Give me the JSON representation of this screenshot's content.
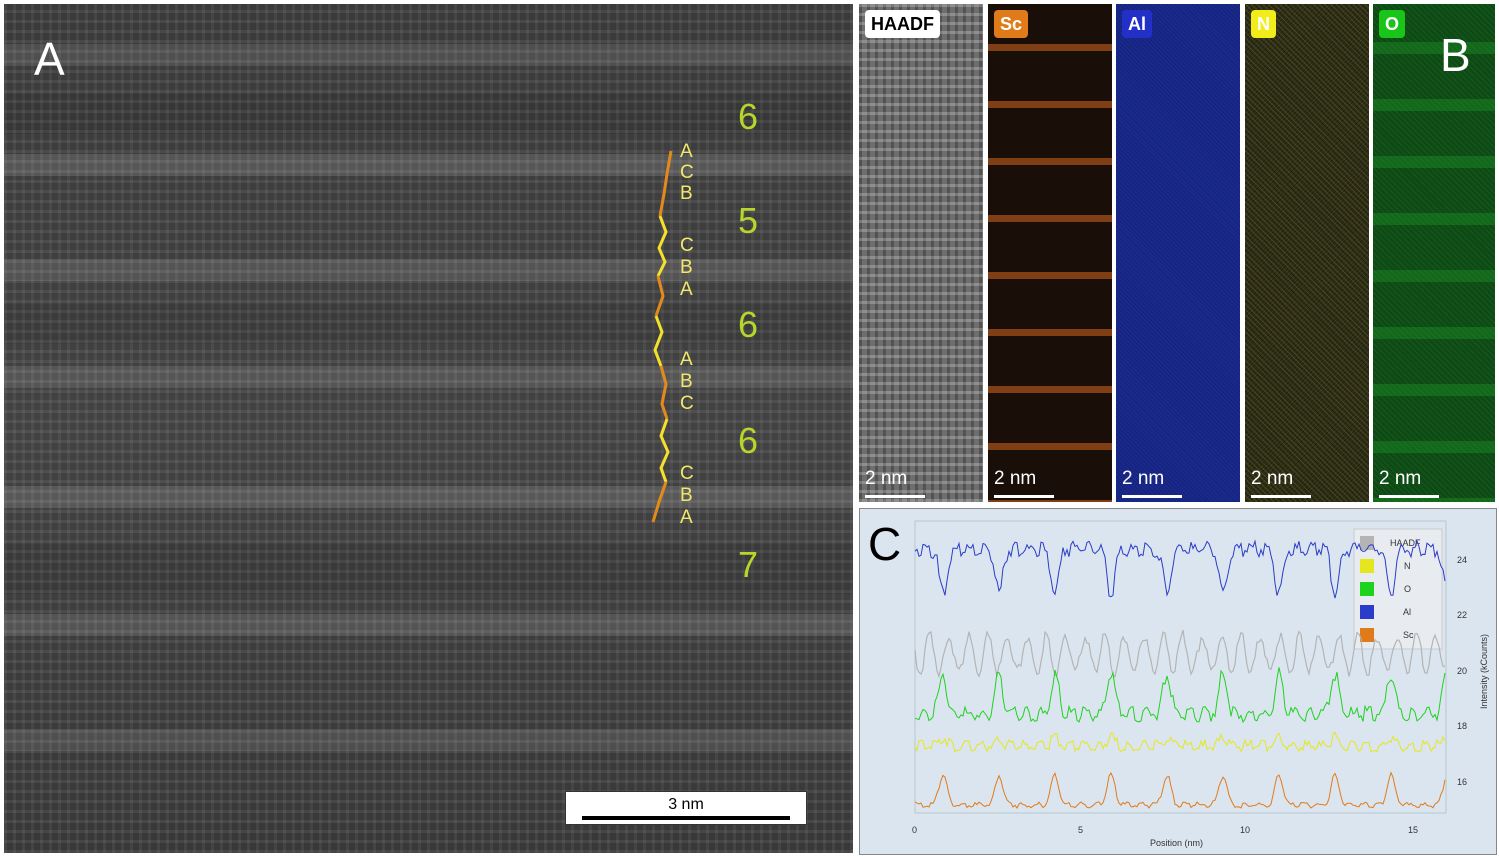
{
  "panel_a": {
    "letter": "A",
    "layer_numbers": [
      "6",
      "5",
      "6",
      "6",
      "7"
    ],
    "stacking_letters": [
      "A",
      "C",
      "B",
      "C",
      "B",
      "A",
      "A",
      "B",
      "C",
      "C",
      "B",
      "A"
    ],
    "scalebar_label": "3 nm",
    "colors": {
      "layer_numbers": "#b5d62a",
      "stacking_letters": "#f2e96a",
      "zigzag_orange": "#e48a1c",
      "zigzag_yellow": "#f3e12a"
    }
  },
  "panel_b": {
    "letter": "B",
    "maps": [
      {
        "label": "HAADF",
        "scalebar": "2 nm",
        "tag_bg": "#ffffff",
        "tag_fg": "#000000"
      },
      {
        "label": "Sc",
        "scalebar": "2 nm",
        "tag_bg": "#e07b1a",
        "tag_fg": "#ffffff"
      },
      {
        "label": "Al",
        "scalebar": "2 nm",
        "tag_bg": "#2230c8",
        "tag_fg": "#ffffff"
      },
      {
        "label": "N",
        "scalebar": "2 nm",
        "tag_bg": "#f2ec1a",
        "tag_fg": "#ffffff"
      },
      {
        "label": "O",
        "scalebar": "2 nm",
        "tag_bg": "#19c519",
        "tag_fg": "#ffffff"
      }
    ]
  },
  "panel_c": {
    "letter": "C",
    "legend": [
      {
        "name": "HAADF",
        "color": "#b4b4b4"
      },
      {
        "name": "N",
        "color": "#e6e61e"
      },
      {
        "name": "O",
        "color": "#1ed21e"
      },
      {
        "name": "Al",
        "color": "#2a3cc8"
      },
      {
        "name": "Sc",
        "color": "#e07b1a"
      }
    ],
    "x_ticks": [
      "0",
      "5",
      "10",
      "15"
    ],
    "y_ticks": [
      "16",
      "18",
      "20",
      "22",
      "24"
    ],
    "xlabel": "Position (nm)",
    "ylabel": "Intensity (kCounts)"
  }
}
